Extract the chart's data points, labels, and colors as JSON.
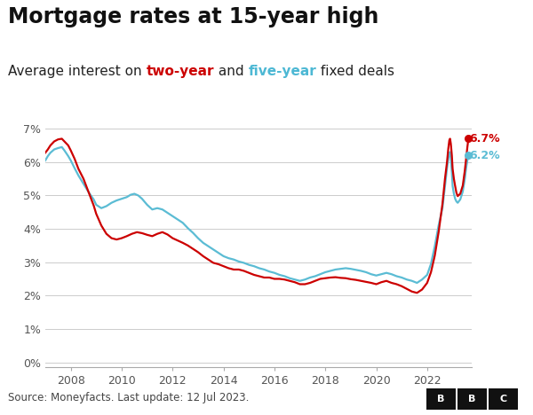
{
  "title": "Mortgage rates at 15-year high",
  "subtitle_texts": [
    [
      "Average interest on ",
      "#222222",
      false
    ],
    [
      "two-year",
      "#cc0000",
      true
    ],
    [
      " and ",
      "#222222",
      false
    ],
    [
      "five-year",
      "#4db8d4",
      true
    ],
    [
      " fixed deals",
      "#222222",
      false
    ]
  ],
  "source": "Source: Moneyfacts. Last update: 12 Jul 2023.",
  "two_year_color": "#cc0000",
  "five_year_color": "#5bbcd4",
  "end_label_two": "6.7%",
  "end_label_five": "6.2%",
  "ylabel_ticks": [
    "0%",
    "1%",
    "2%",
    "3%",
    "4%",
    "5%",
    "6%",
    "7%"
  ],
  "ytick_vals": [
    0,
    1,
    2,
    3,
    4,
    5,
    6,
    7
  ],
  "xtick_years": [
    2008,
    2010,
    2012,
    2014,
    2016,
    2018,
    2020,
    2022
  ],
  "xlim": [
    2007.0,
    2023.75
  ],
  "ylim": [
    -0.15,
    7.5
  ],
  "background_color": "#ffffff",
  "grid_color": "#cccccc",
  "title_fontsize": 17,
  "subtitle_fontsize": 11,
  "tick_fontsize": 9,
  "source_fontsize": 8.5,
  "two_year_data": [
    [
      2007.0,
      6.28
    ],
    [
      2007.1,
      6.38
    ],
    [
      2007.2,
      6.5
    ],
    [
      2007.35,
      6.62
    ],
    [
      2007.5,
      6.68
    ],
    [
      2007.65,
      6.7
    ],
    [
      2007.75,
      6.62
    ],
    [
      2007.9,
      6.5
    ],
    [
      2008.0,
      6.35
    ],
    [
      2008.15,
      6.1
    ],
    [
      2008.3,
      5.8
    ],
    [
      2008.5,
      5.5
    ],
    [
      2008.7,
      5.1
    ],
    [
      2008.9,
      4.7
    ],
    [
      2009.0,
      4.45
    ],
    [
      2009.2,
      4.1
    ],
    [
      2009.4,
      3.85
    ],
    [
      2009.6,
      3.72
    ],
    [
      2009.8,
      3.68
    ],
    [
      2010.0,
      3.72
    ],
    [
      2010.2,
      3.78
    ],
    [
      2010.4,
      3.85
    ],
    [
      2010.6,
      3.9
    ],
    [
      2010.8,
      3.87
    ],
    [
      2011.0,
      3.82
    ],
    [
      2011.2,
      3.78
    ],
    [
      2011.4,
      3.85
    ],
    [
      2011.6,
      3.9
    ],
    [
      2011.8,
      3.83
    ],
    [
      2012.0,
      3.72
    ],
    [
      2012.2,
      3.65
    ],
    [
      2012.4,
      3.58
    ],
    [
      2012.6,
      3.5
    ],
    [
      2012.8,
      3.4
    ],
    [
      2013.0,
      3.3
    ],
    [
      2013.2,
      3.18
    ],
    [
      2013.4,
      3.08
    ],
    [
      2013.6,
      2.98
    ],
    [
      2013.8,
      2.94
    ],
    [
      2014.0,
      2.88
    ],
    [
      2014.2,
      2.82
    ],
    [
      2014.4,
      2.78
    ],
    [
      2014.6,
      2.78
    ],
    [
      2014.8,
      2.74
    ],
    [
      2015.0,
      2.68
    ],
    [
      2015.2,
      2.62
    ],
    [
      2015.4,
      2.58
    ],
    [
      2015.6,
      2.54
    ],
    [
      2015.8,
      2.54
    ],
    [
      2016.0,
      2.5
    ],
    [
      2016.2,
      2.5
    ],
    [
      2016.4,
      2.48
    ],
    [
      2016.6,
      2.44
    ],
    [
      2016.8,
      2.4
    ],
    [
      2017.0,
      2.34
    ],
    [
      2017.2,
      2.34
    ],
    [
      2017.4,
      2.38
    ],
    [
      2017.6,
      2.44
    ],
    [
      2017.8,
      2.5
    ],
    [
      2018.0,
      2.52
    ],
    [
      2018.2,
      2.54
    ],
    [
      2018.4,
      2.55
    ],
    [
      2018.6,
      2.53
    ],
    [
      2018.8,
      2.52
    ],
    [
      2019.0,
      2.49
    ],
    [
      2019.2,
      2.47
    ],
    [
      2019.4,
      2.44
    ],
    [
      2019.6,
      2.41
    ],
    [
      2019.8,
      2.38
    ],
    [
      2020.0,
      2.34
    ],
    [
      2020.2,
      2.4
    ],
    [
      2020.4,
      2.44
    ],
    [
      2020.6,
      2.38
    ],
    [
      2020.8,
      2.34
    ],
    [
      2021.0,
      2.28
    ],
    [
      2021.2,
      2.2
    ],
    [
      2021.4,
      2.12
    ],
    [
      2021.6,
      2.08
    ],
    [
      2021.8,
      2.18
    ],
    [
      2022.0,
      2.38
    ],
    [
      2022.15,
      2.7
    ],
    [
      2022.3,
      3.2
    ],
    [
      2022.45,
      3.9
    ],
    [
      2022.6,
      4.74
    ],
    [
      2022.7,
      5.5
    ],
    [
      2022.78,
      6.0
    ],
    [
      2022.83,
      6.4
    ],
    [
      2022.87,
      6.65
    ],
    [
      2022.9,
      6.7
    ],
    [
      2022.93,
      6.55
    ],
    [
      2022.97,
      6.2
    ],
    [
      2023.0,
      5.8
    ],
    [
      2023.05,
      5.5
    ],
    [
      2023.1,
      5.28
    ],
    [
      2023.15,
      5.08
    ],
    [
      2023.2,
      4.98
    ],
    [
      2023.3,
      5.05
    ],
    [
      2023.4,
      5.3
    ],
    [
      2023.48,
      5.75
    ],
    [
      2023.53,
      6.1
    ],
    [
      2023.58,
      6.45
    ],
    [
      2023.62,
      6.7
    ]
  ],
  "five_year_data": [
    [
      2007.0,
      6.05
    ],
    [
      2007.1,
      6.18
    ],
    [
      2007.2,
      6.28
    ],
    [
      2007.35,
      6.38
    ],
    [
      2007.5,
      6.42
    ],
    [
      2007.65,
      6.45
    ],
    [
      2007.75,
      6.35
    ],
    [
      2007.9,
      6.18
    ],
    [
      2008.0,
      6.05
    ],
    [
      2008.15,
      5.82
    ],
    [
      2008.3,
      5.6
    ],
    [
      2008.5,
      5.35
    ],
    [
      2008.7,
      5.1
    ],
    [
      2008.9,
      4.88
    ],
    [
      2009.0,
      4.72
    ],
    [
      2009.2,
      4.62
    ],
    [
      2009.4,
      4.68
    ],
    [
      2009.6,
      4.78
    ],
    [
      2009.8,
      4.85
    ],
    [
      2010.0,
      4.9
    ],
    [
      2010.2,
      4.95
    ],
    [
      2010.35,
      5.02
    ],
    [
      2010.5,
      5.05
    ],
    [
      2010.65,
      5.0
    ],
    [
      2010.8,
      4.9
    ],
    [
      2011.0,
      4.72
    ],
    [
      2011.2,
      4.58
    ],
    [
      2011.4,
      4.62
    ],
    [
      2011.6,
      4.58
    ],
    [
      2011.8,
      4.48
    ],
    [
      2012.0,
      4.38
    ],
    [
      2012.2,
      4.28
    ],
    [
      2012.4,
      4.18
    ],
    [
      2012.6,
      4.02
    ],
    [
      2012.8,
      3.88
    ],
    [
      2013.0,
      3.72
    ],
    [
      2013.2,
      3.58
    ],
    [
      2013.4,
      3.48
    ],
    [
      2013.6,
      3.38
    ],
    [
      2013.8,
      3.28
    ],
    [
      2014.0,
      3.18
    ],
    [
      2014.2,
      3.12
    ],
    [
      2014.4,
      3.08
    ],
    [
      2014.6,
      3.02
    ],
    [
      2014.8,
      2.98
    ],
    [
      2015.0,
      2.92
    ],
    [
      2015.2,
      2.88
    ],
    [
      2015.4,
      2.82
    ],
    [
      2015.6,
      2.78
    ],
    [
      2015.8,
      2.72
    ],
    [
      2016.0,
      2.68
    ],
    [
      2016.2,
      2.62
    ],
    [
      2016.4,
      2.58
    ],
    [
      2016.6,
      2.52
    ],
    [
      2016.8,
      2.48
    ],
    [
      2017.0,
      2.44
    ],
    [
      2017.2,
      2.48
    ],
    [
      2017.4,
      2.54
    ],
    [
      2017.6,
      2.58
    ],
    [
      2017.8,
      2.64
    ],
    [
      2018.0,
      2.7
    ],
    [
      2018.2,
      2.74
    ],
    [
      2018.4,
      2.78
    ],
    [
      2018.6,
      2.8
    ],
    [
      2018.8,
      2.82
    ],
    [
      2019.0,
      2.8
    ],
    [
      2019.2,
      2.77
    ],
    [
      2019.4,
      2.74
    ],
    [
      2019.6,
      2.7
    ],
    [
      2019.8,
      2.64
    ],
    [
      2020.0,
      2.6
    ],
    [
      2020.2,
      2.64
    ],
    [
      2020.4,
      2.68
    ],
    [
      2020.6,
      2.64
    ],
    [
      2020.8,
      2.58
    ],
    [
      2021.0,
      2.54
    ],
    [
      2021.2,
      2.48
    ],
    [
      2021.4,
      2.44
    ],
    [
      2021.6,
      2.38
    ],
    [
      2021.8,
      2.48
    ],
    [
      2022.0,
      2.62
    ],
    [
      2022.15,
      2.95
    ],
    [
      2022.3,
      3.48
    ],
    [
      2022.45,
      4.1
    ],
    [
      2022.6,
      4.62
    ],
    [
      2022.7,
      5.28
    ],
    [
      2022.78,
      5.82
    ],
    [
      2022.83,
      6.1
    ],
    [
      2022.87,
      6.28
    ],
    [
      2022.9,
      6.3
    ],
    [
      2022.93,
      6.1
    ],
    [
      2022.97,
      5.7
    ],
    [
      2023.0,
      5.28
    ],
    [
      2023.05,
      5.05
    ],
    [
      2023.1,
      4.9
    ],
    [
      2023.15,
      4.82
    ],
    [
      2023.2,
      4.78
    ],
    [
      2023.3,
      4.88
    ],
    [
      2023.4,
      5.12
    ],
    [
      2023.48,
      5.5
    ],
    [
      2023.53,
      5.82
    ],
    [
      2023.58,
      6.05
    ],
    [
      2023.62,
      6.2
    ]
  ]
}
